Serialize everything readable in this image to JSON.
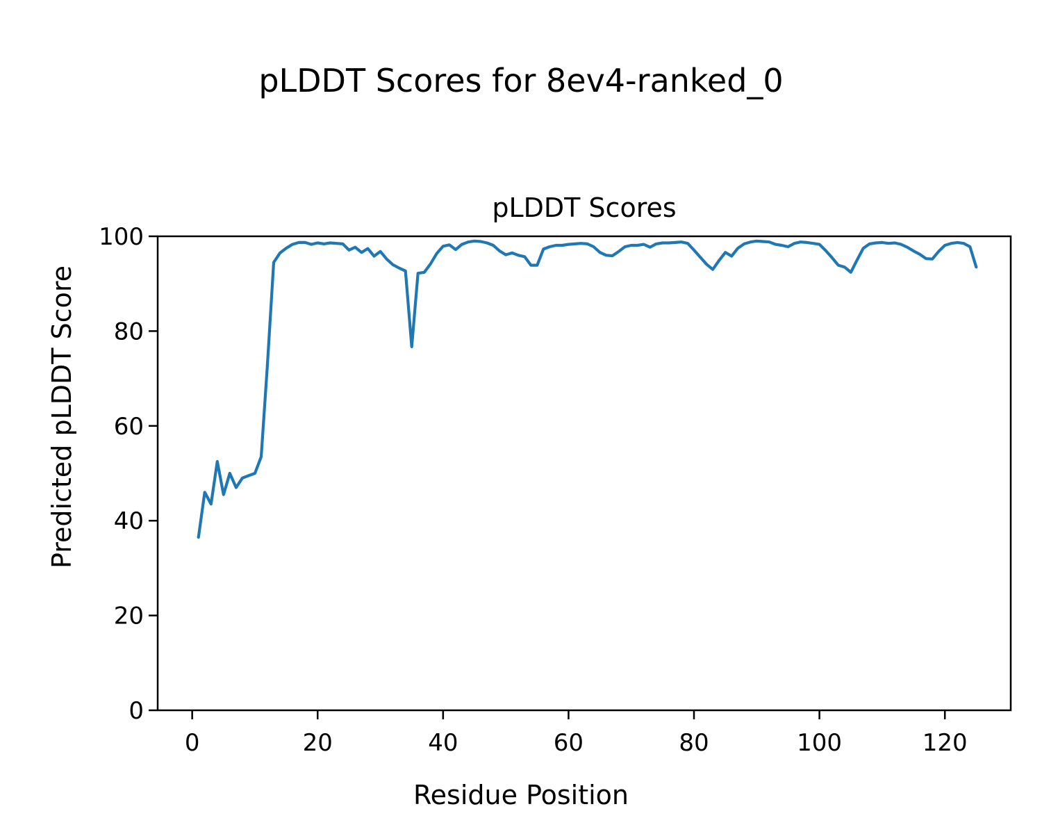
{
  "figure": {
    "suptitle": "pLDDT Scores for 8ev4-ranked_0",
    "background": "#ffffff"
  },
  "chart_data": {
    "type": "line",
    "title": "pLDDT Scores",
    "xlabel": "Residue Position",
    "ylabel": "Predicted pLDDT Score",
    "xlim": [
      -5.5,
      130.5
    ],
    "ylim": [
      0,
      100
    ],
    "xticks": [
      0,
      20,
      40,
      60,
      80,
      100,
      120
    ],
    "yticks": [
      0,
      20,
      40,
      60,
      80,
      100
    ],
    "grid": false,
    "legend": "none",
    "line_width": 4.2,
    "text_color": "#000000",
    "spine_color": "#000000",
    "series": [
      {
        "name": "pLDDT",
        "color": "#1f77b4",
        "x_start": 1,
        "values": [
          36.5,
          46.0,
          43.5,
          52.5,
          45.5,
          50.0,
          47.0,
          49.0,
          49.5,
          50.0,
          53.5,
          73.0,
          94.5,
          96.5,
          97.5,
          98.3,
          98.7,
          98.7,
          98.3,
          98.6,
          98.4,
          98.6,
          98.5,
          98.4,
          97.1,
          97.7,
          96.6,
          97.4,
          95.8,
          96.8,
          95.2,
          94.0,
          93.3,
          92.7,
          76.7,
          92.2,
          92.4,
          94.2,
          96.4,
          97.9,
          98.2,
          97.2,
          98.3,
          98.8,
          99.0,
          98.9,
          98.6,
          98.1,
          96.9,
          96.1,
          96.5,
          96.0,
          95.7,
          93.9,
          93.9,
          97.3,
          97.8,
          98.1,
          98.1,
          98.3,
          98.4,
          98.5,
          98.4,
          97.8,
          96.6,
          96.0,
          95.9,
          96.8,
          97.8,
          98.1,
          98.1,
          98.3,
          97.7,
          98.4,
          98.6,
          98.6,
          98.7,
          98.8,
          98.5,
          97.1,
          95.6,
          94.1,
          93.0,
          94.9,
          96.6,
          95.8,
          97.5,
          98.4,
          98.8,
          99.0,
          98.9,
          98.8,
          98.3,
          98.1,
          97.8,
          98.5,
          98.8,
          98.7,
          98.5,
          98.3,
          97.0,
          95.5,
          93.9,
          93.5,
          92.4,
          95.0,
          97.5,
          98.4,
          98.6,
          98.7,
          98.5,
          98.6,
          98.3,
          97.7,
          96.9,
          96.2,
          95.3,
          95.2,
          96.8,
          98.1,
          98.5,
          98.7,
          98.5,
          97.8,
          93.5
        ]
      }
    ]
  }
}
